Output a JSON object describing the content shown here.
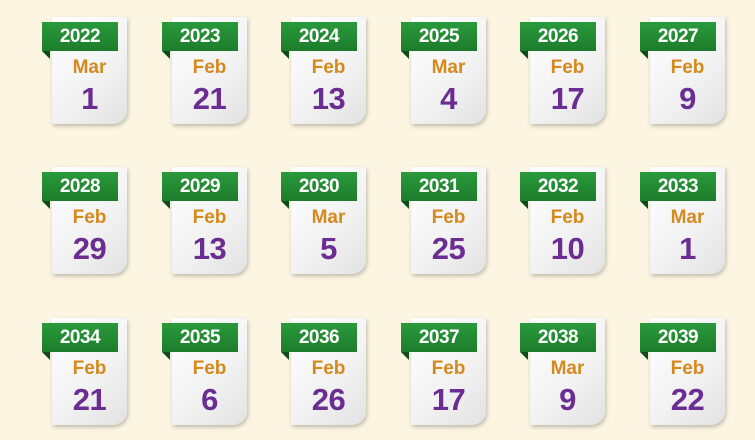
{
  "dates": [
    {
      "year": "2022",
      "month": "Mar",
      "day": "1"
    },
    {
      "year": "2023",
      "month": "Feb",
      "day": "21"
    },
    {
      "year": "2024",
      "month": "Feb",
      "day": "13"
    },
    {
      "year": "2025",
      "month": "Mar",
      "day": "4"
    },
    {
      "year": "2026",
      "month": "Feb",
      "day": "17"
    },
    {
      "year": "2027",
      "month": "Feb",
      "day": "9"
    },
    {
      "year": "2028",
      "month": "Feb",
      "day": "29"
    },
    {
      "year": "2029",
      "month": "Feb",
      "day": "13"
    },
    {
      "year": "2030",
      "month": "Mar",
      "day": "5"
    },
    {
      "year": "2031",
      "month": "Feb",
      "day": "25"
    },
    {
      "year": "2032",
      "month": "Feb",
      "day": "10"
    },
    {
      "year": "2033",
      "month": "Mar",
      "day": "1"
    },
    {
      "year": "2034",
      "month": "Feb",
      "day": "21"
    },
    {
      "year": "2035",
      "month": "Feb",
      "day": "6"
    },
    {
      "year": "2036",
      "month": "Feb",
      "day": "26"
    },
    {
      "year": "2037",
      "month": "Feb",
      "day": "17"
    },
    {
      "year": "2038",
      "month": "Mar",
      "day": "9"
    },
    {
      "year": "2039",
      "month": "Feb",
      "day": "22"
    }
  ],
  "colors": {
    "background": "#fbf5e1",
    "banner": "#1d7c2b",
    "month": "#d58a1d",
    "day": "#6b2d91"
  }
}
